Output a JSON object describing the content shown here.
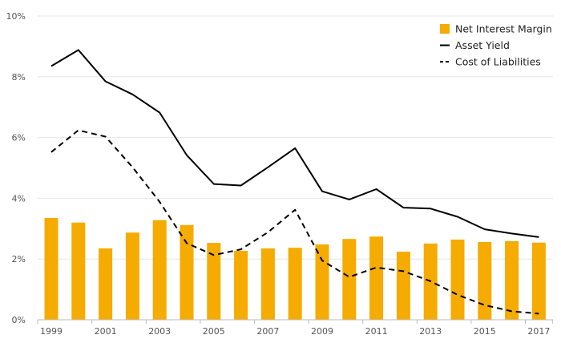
{
  "chart_data": {
    "type": "bar",
    "title": "",
    "xlabel": "",
    "ylabel": "",
    "ylim": [
      0,
      10
    ],
    "yticks": [
      "0%",
      "2%",
      "4%",
      "6%",
      "8%",
      "10%"
    ],
    "grid": true,
    "legend_position": "top-right",
    "categories": [
      "1999",
      "2000",
      "2001",
      "2002",
      "2003",
      "2004",
      "2005",
      "2006",
      "2007",
      "2008",
      "2009",
      "2010",
      "2011",
      "2012",
      "2013",
      "2014",
      "2015",
      "2016",
      "2017"
    ],
    "xtick_labels": [
      "1999",
      "2001",
      "2003",
      "2005",
      "2007",
      "2009",
      "2011",
      "2013",
      "2015",
      "2017"
    ],
    "series": [
      {
        "name": "Net Interest Margin",
        "type": "bar",
        "color": "#f5ab00",
        "values": [
          3.35,
          3.2,
          2.35,
          2.87,
          3.28,
          3.12,
          2.53,
          2.27,
          2.35,
          2.37,
          2.48,
          2.66,
          2.74,
          2.24,
          2.51,
          2.64,
          2.56,
          2.59,
          2.54
        ]
      },
      {
        "name": "Asset Yield",
        "type": "line",
        "style": "solid",
        "color": "#000000",
        "values": [
          8.35,
          8.88,
          7.85,
          7.42,
          6.82,
          5.42,
          4.47,
          4.42,
          5.02,
          5.65,
          4.23,
          3.96,
          4.3,
          3.69,
          3.66,
          3.39,
          2.98,
          2.84,
          2.72
        ]
      },
      {
        "name": "Cost of Liabilities",
        "type": "line",
        "style": "dashed",
        "color": "#000000",
        "values": [
          5.52,
          6.24,
          6.03,
          5.02,
          3.88,
          2.52,
          2.13,
          2.32,
          2.88,
          3.62,
          1.95,
          1.41,
          1.72,
          1.6,
          1.27,
          0.82,
          0.48,
          0.28,
          0.2
        ]
      }
    ]
  }
}
